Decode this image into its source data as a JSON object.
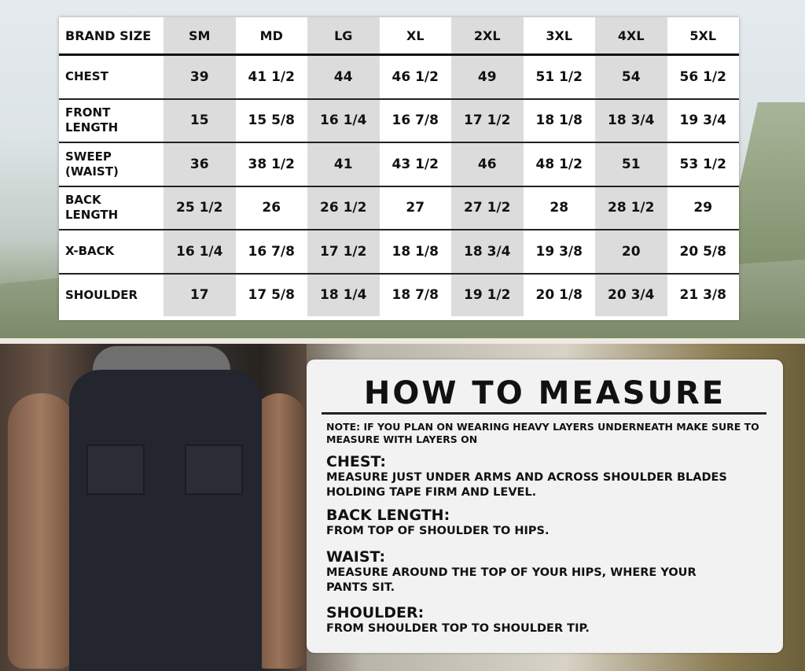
{
  "size_chart": {
    "header": [
      "BRAND SIZE",
      "SM",
      "MD",
      "LG",
      "XL",
      "2XL",
      "3XL",
      "4XL",
      "5XL"
    ],
    "rows": [
      {
        "label": "CHEST",
        "values": [
          "39",
          "41 1/2",
          "44",
          "46 1/2",
          "49",
          "51 1/2",
          "54",
          "56 1/2"
        ]
      },
      {
        "label": "FRONT\nLENGTH",
        "values": [
          "15",
          "15 5/8",
          "16 1/4",
          "16 7/8",
          "17 1/2",
          "18 1/8",
          "18 3/4",
          "19 3/4"
        ]
      },
      {
        "label": "SWEEP\n(WAIST)",
        "values": [
          "36",
          "38 1/2",
          "41",
          "43 1/2",
          "46",
          "48 1/2",
          "51",
          "53 1/2"
        ]
      },
      {
        "label": "BACK\nLENGTH",
        "values": [
          "25 1/2",
          "26",
          "26 1/2",
          "27",
          "27 1/2",
          "28",
          "28 1/2",
          "29"
        ]
      },
      {
        "label": "X-BACK",
        "values": [
          "16 1/4",
          "16 7/8",
          "17 1/2",
          "18 1/8",
          "18 3/4",
          "19 3/8",
          "20",
          "20 5/8"
        ]
      },
      {
        "label": "SHOULDER",
        "values": [
          "17",
          "17 5/8",
          "18 1/4",
          "18 7/8",
          "19 1/2",
          "20 1/8",
          "20 3/4",
          "21 3/8"
        ]
      }
    ],
    "alt_column_color": "#dcdcdc"
  },
  "how_to_measure": {
    "title": "HOW TO MEASURE",
    "note": "NOTE: IF YOU PLAN ON WEARING HEAVY LAYERS UNDERNEATH MAKE SURE TO MEASURE WITH LAYERS ON",
    "sections": [
      {
        "title": "CHEST:",
        "text": "MEASURE JUST UNDER ARMS AND ACROSS SHOULDER BLADES HOLDING TAPE FIRM AND LEVEL."
      },
      {
        "title": "BACK LENGTH:",
        "text": "FROM TOP OF SHOULDER TO HIPS."
      },
      {
        "title": "WAIST:",
        "text": "MEASURE AROUND THE TOP OF YOUR HIPS, WHERE YOUR PANTS SIT."
      },
      {
        "title": "SHOULDER:",
        "text": "FROM SHOULDER TOP TO SHOULDER TIP."
      }
    ]
  }
}
